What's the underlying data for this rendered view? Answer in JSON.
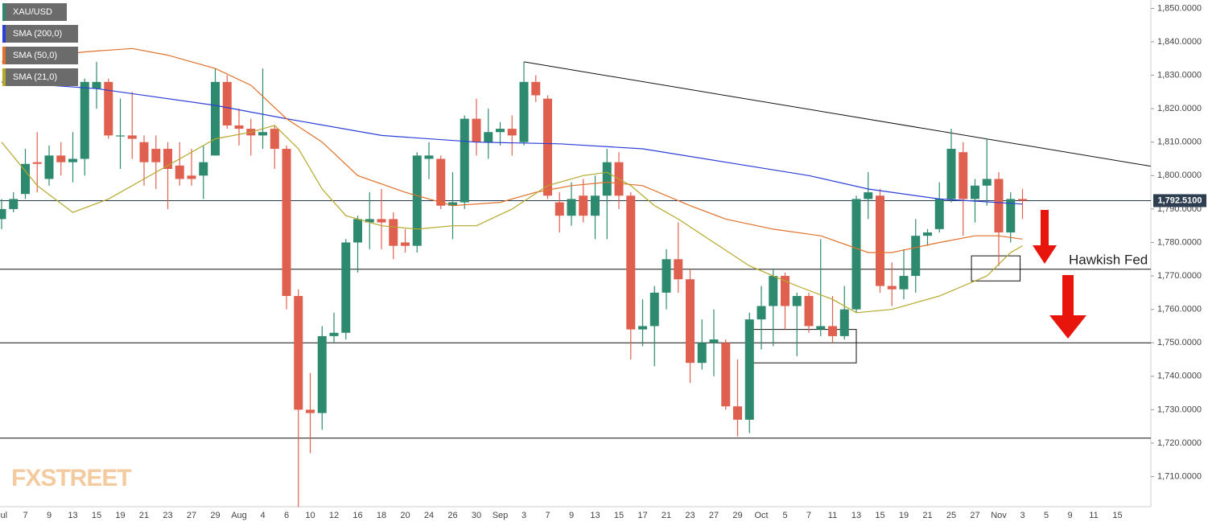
{
  "chart_data": {
    "type": "candlestick",
    "name": "XAU/USD",
    "up_color": "#2e8a6e",
    "down_color": "#e0604f",
    "categories": [
      "Jul",
      null,
      "7",
      null,
      "9",
      null,
      "13",
      null,
      "15",
      null,
      "19",
      null,
      "21",
      null,
      "23",
      null,
      "27",
      null,
      "29",
      null,
      "Aug",
      null,
      "4",
      null,
      "6",
      null,
      "10",
      null,
      "12",
      null,
      "16",
      null,
      "18",
      null,
      "20",
      null,
      "24",
      null,
      "26",
      null,
      "30",
      null,
      "Sep",
      null,
      "3",
      null,
      "7",
      null,
      "9",
      null,
      "13",
      null,
      "15",
      null,
      "17",
      null,
      "21",
      null,
      "23",
      null,
      "27",
      null,
      "29",
      null,
      "Oct",
      null,
      "5",
      null,
      "7",
      null,
      "11",
      null,
      "13",
      null,
      "15",
      null,
      "19",
      null,
      "21",
      null,
      "25",
      null,
      "27",
      null,
      "Nov",
      null,
      "3",
      null,
      "5",
      null,
      "9",
      null,
      "11",
      null,
      "15",
      null
    ],
    "open": [
      1787,
      1790,
      1794.5,
      1804,
      1799,
      1806,
      1804,
      1805,
      1826,
      1828,
      1812,
      1812,
      1810,
      1808,
      1808,
      1803,
      1800,
      1800,
      1806,
      1828,
      1815,
      1814,
      1812,
      1814,
      1808,
      1764,
      1730,
      1729,
      1752,
      1753,
      1780,
      1786,
      1787,
      1787,
      1780,
      1779,
      1805,
      1805,
      1791,
      1792,
      1817,
      1810,
      1813,
      1814,
      1810,
      1828,
      1823,
      1792,
      1788,
      1794,
      1788,
      1794,
      1804,
      1794,
      1754,
      1755,
      1765,
      1775,
      1769,
      1744,
      1750,
      1750,
      1731,
      1727,
      1757,
      1761,
      1770,
      1761,
      1764,
      1754,
      1755,
      1752,
      1760,
      1793,
      1794,
      1767,
      1766,
      1770,
      1782,
      1784,
      1793,
      1807,
      1793,
      1797,
      1799,
      1783,
      1793,
      null,
      null,
      null,
      null,
      null,
      null,
      null,
      null,
      null
    ],
    "high": [
      1793,
      1795,
      1808,
      1813,
      1809,
      1810,
      1813,
      1829,
      1834,
      1829,
      1823,
      1825,
      1812,
      1812,
      1810,
      1810,
      1808,
      1809,
      1832,
      1830,
      1820,
      1817,
      1832,
      1815,
      1809,
      1766,
      1741,
      1755,
      1759,
      1781,
      1788,
      1795,
      1796,
      1789,
      1784,
      1807,
      1810,
      1806,
      1801,
      1818,
      1823,
      1820,
      1816,
      1818,
      1834,
      1830,
      1824,
      1795,
      1798,
      1799,
      1800,
      1808,
      1807,
      1795,
      1763,
      1767,
      1778,
      1786,
      1772,
      1757,
      1760,
      1751,
      1745,
      1759,
      1767,
      1772,
      1771,
      1765,
      1765,
      1781,
      1764,
      1767,
      1794,
      1801,
      1796,
      1774,
      1778,
      1787,
      1784,
      1798,
      1814,
      1810,
      1799,
      1811,
      1801,
      1795,
      1796,
      null,
      null,
      null,
      null,
      null,
      null,
      null,
      null,
      null
    ],
    "low": [
      1784,
      1789,
      1793,
      1795,
      1797,
      1800,
      1798,
      1800,
      1820,
      1811,
      1802,
      1805,
      1797,
      1796,
      1790,
      1797,
      1797,
      1793,
      1806,
      1814,
      1809,
      1806,
      1808,
      1802,
      1760,
      1701,
      1717,
      1724,
      1750,
      1751,
      1771,
      1778,
      1778,
      1775,
      1777,
      1777,
      1799,
      1790,
      1781,
      1790,
      1806,
      1805,
      1809,
      1806,
      1809,
      1822,
      1793,
      1783,
      1785,
      1786,
      1781,
      1781,
      1790,
      1745,
      1749,
      1743,
      1760,
      1765,
      1738,
      1742,
      1740,
      1730,
      1722,
      1723,
      1748,
      1749,
      1754,
      1746,
      1753,
      1752,
      1750,
      1751,
      1759,
      1787,
      1765,
      1761,
      1763,
      1765,
      1779,
      1783,
      1792,
      1782,
      1786,
      1791,
      1773,
      1780,
      1787,
      null,
      null,
      null,
      null,
      null,
      null,
      null,
      null,
      null
    ],
    "close": [
      1790,
      1793,
      1803.5,
      1803.5,
      1806,
      1804,
      1805,
      1828,
      1828,
      1812,
      1812,
      1811,
      1804,
      1804,
      1802,
      1799,
      1799,
      1804,
      1828,
      1815,
      1814,
      1812,
      1813,
      1808,
      1764,
      1730,
      1729,
      1752,
      1753,
      1780,
      1787,
      1787,
      1786,
      1779,
      1779,
      1806,
      1806,
      1791,
      1792,
      1817,
      1810,
      1813,
      1814,
      1812,
      1828,
      1824,
      1794,
      1788,
      1793,
      1788,
      1794,
      1804,
      1794,
      1754,
      1755,
      1765,
      1775,
      1769,
      1744,
      1750,
      1751,
      1731,
      1727,
      1757,
      1761,
      1770,
      1761,
      1764,
      1755,
      1755,
      1752,
      1760,
      1793,
      1795,
      1767,
      1766,
      1770,
      1782,
      1783,
      1793,
      1808,
      1793,
      1797,
      1799,
      1783,
      1793,
      1792.5,
      null,
      null,
      null,
      null,
      null,
      null,
      null,
      null,
      null
    ],
    "series": [
      {
        "name": "SMA (200,0)",
        "color": "#2b3fd6",
        "x": [
          0,
          8,
          18,
          24,
          32,
          40,
          47,
          54,
          61,
          68,
          73,
          79,
          86
        ],
        "values": [
          1828,
          1826,
          1821,
          1817,
          1812,
          1810,
          1809.5,
          1808,
          1804,
          1800,
          1796,
          1793,
          1791.5
        ]
      },
      {
        "name": "SMA (50,0)",
        "color": "#e0702a",
        "x": [
          0,
          7,
          11,
          14,
          18,
          21,
          24,
          27,
          30,
          34,
          38,
          42,
          45,
          48,
          51,
          54,
          58,
          61,
          65,
          69,
          73,
          75,
          79,
          82,
          84,
          86
        ],
        "values": [
          1834,
          1837,
          1838,
          1836,
          1832,
          1827,
          1817,
          1810,
          1800,
          1795,
          1791,
          1792,
          1795,
          1797,
          1798,
          1797,
          1791,
          1787,
          1784,
          1782,
          1777,
          1777,
          1780,
          1782,
          1782,
          1781
        ]
      },
      {
        "name": "SMA (21,0)",
        "color": "#b5a82a",
        "x": [
          0,
          3,
          6,
          9,
          12,
          15,
          18,
          21,
          23,
          25,
          27,
          29,
          32,
          35,
          38,
          40,
          43,
          46,
          49,
          51,
          53,
          55,
          57,
          60,
          63,
          65,
          67,
          70,
          72,
          75,
          77,
          79,
          81,
          83,
          85,
          86
        ],
        "values": [
          1810,
          1797,
          1789,
          1793,
          1799,
          1805,
          1811,
          1813,
          1815,
          1808,
          1796,
          1788,
          1785,
          1784,
          1785,
          1785,
          1790,
          1797,
          1800,
          1801,
          1797,
          1791,
          1787,
          1780,
          1773,
          1770,
          1767,
          1763,
          1759,
          1760,
          1762,
          1764,
          1767,
          1770,
          1777,
          1779
        ]
      }
    ],
    "ylim": [
      1701,
      1852.5
    ],
    "yticks": [
      {
        "value": 1710,
        "label": "1,710.0000"
      },
      {
        "value": 1720,
        "label": "1,720.0000"
      },
      {
        "value": 1730,
        "label": "1,730.0000"
      },
      {
        "value": 1740,
        "label": "1,740.0000"
      },
      {
        "value": 1750,
        "label": "1,750.0000"
      },
      {
        "value": 1760,
        "label": "1,760.0000"
      },
      {
        "value": 1770,
        "label": "1,770.0000"
      },
      {
        "value": 1780,
        "label": "1,780.0000"
      },
      {
        "value": 1790,
        "label": "1,790.0000"
      },
      {
        "value": 1800,
        "label": "1,800.0000"
      },
      {
        "value": 1810,
        "label": "1,810.0000"
      },
      {
        "value": 1820,
        "label": "1,820.0000"
      },
      {
        "value": 1830,
        "label": "1,830.0000"
      },
      {
        "value": 1840,
        "label": "1,840.0000"
      },
      {
        "value": 1850,
        "label": "1,850.0000"
      }
    ],
    "last_price": {
      "value": 1792.51,
      "label": "1,792.5100"
    },
    "levels": [
      1772,
      1750,
      1721.5
    ],
    "trendline": {
      "x": [
        44,
        96.8
      ],
      "values": [
        1834,
        1802.8
      ]
    },
    "boxes": [
      {
        "x": [
          63,
          72
        ],
        "values": [
          1744,
          1754
        ]
      },
      {
        "x": [
          81.7,
          85.8
        ],
        "values": [
          1768.5,
          1776
        ]
      }
    ],
    "annotation": "Hawkish Fed",
    "watermark": "FXSTREET"
  }
}
